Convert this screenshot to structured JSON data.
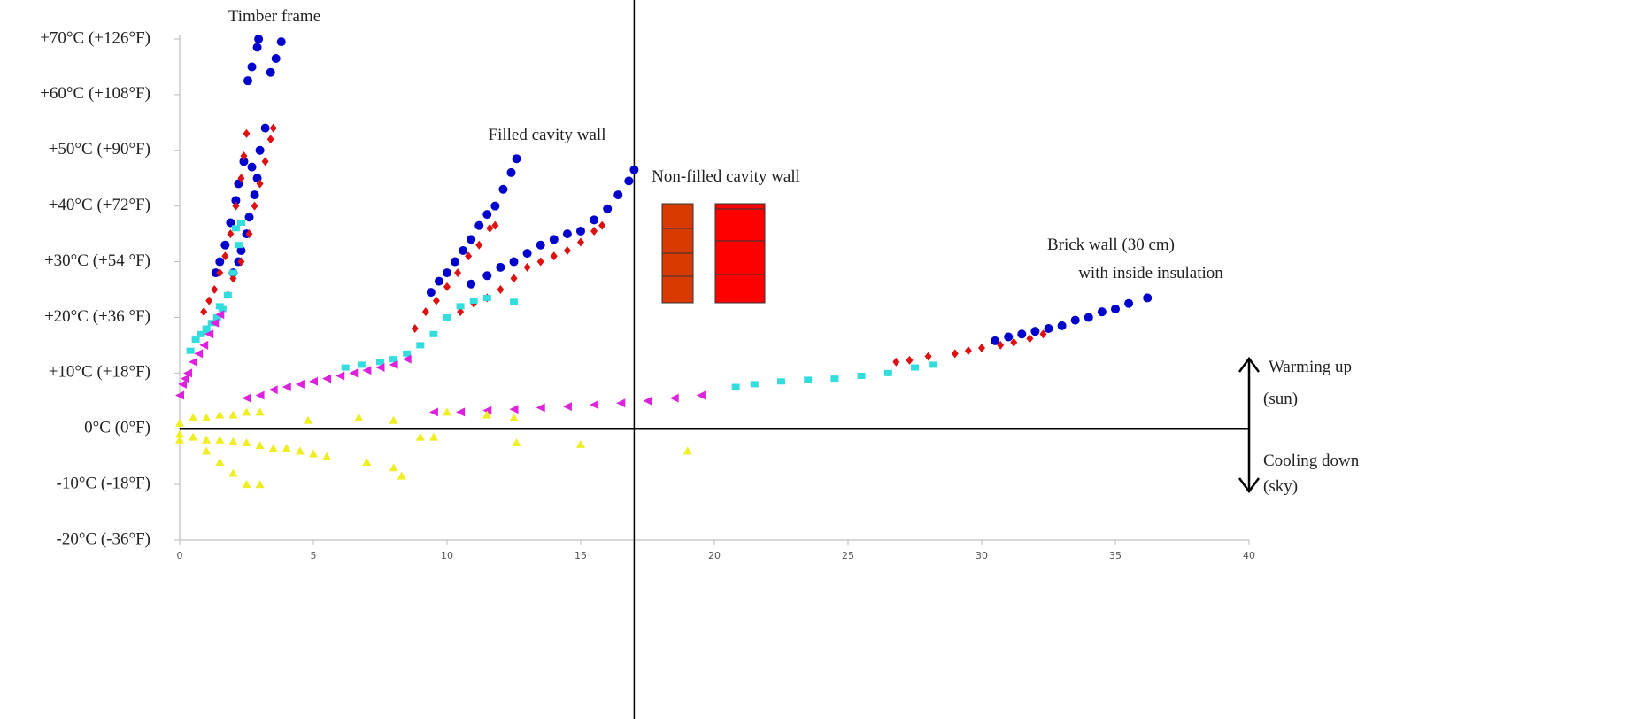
{
  "chart_data": {
    "type": "scatter",
    "xlim": [
      0,
      40
    ],
    "xticks": [
      0,
      5,
      10,
      15,
      20,
      25,
      30,
      35,
      40
    ],
    "ylim": [
      -20,
      70
    ],
    "yticks": [
      {
        "value": -20,
        "label": "-20°C (-36°F)"
      },
      {
        "value": -10,
        "label": "-10°C (-18°F)"
      },
      {
        "value": 0,
        "label": "0°C (0°F)"
      },
      {
        "value": 10,
        "label": "+10°C (+18°F)"
      },
      {
        "value": 20,
        "label": "+20°C (+36 °F)"
      },
      {
        "value": 30,
        "label": "+30°C (+54 °F)"
      },
      {
        "value": 40,
        "label": "+40°C (+72°F)"
      },
      {
        "value": 50,
        "label": "+50°C (+90°F)"
      },
      {
        "value": 60,
        "label": "+60°C (+108°F)"
      },
      {
        "value": 70,
        "label": "+70°C (+126°F)"
      }
    ],
    "reference_line_x": 17,
    "annotations": [
      "Timber frame",
      "Filled cavity wall",
      "Non-filled cavity wall",
      "Brick wall (30 cm)",
      "with inside insulation",
      "Warming up",
      "(sun)",
      "Cooling down",
      "(sky)"
    ],
    "series": [
      {
        "color": "#0000cc",
        "marker": "circle",
        "x": [
          2.55,
          2.7,
          2.9,
          2.95,
          3.4,
          3.6,
          3.8,
          3.2,
          3.0,
          2.7,
          2.4,
          2.2,
          2.1,
          1.9,
          1.7,
          1.5,
          1.35,
          2.9,
          2.8,
          2.6,
          2.5,
          2.3,
          2.2,
          2.0,
          9.4,
          9.7,
          10,
          10.3,
          10.6,
          10.9,
          11.2,
          11.5,
          11.8,
          12.1,
          12.4,
          12.6,
          10.9,
          11.5,
          12,
          12.5,
          13,
          13.5,
          14,
          14.5,
          15,
          15.5,
          16,
          16.4,
          16.8,
          17,
          30.5,
          31,
          31.5,
          32,
          32.5,
          33,
          33.5,
          34,
          34.5,
          35,
          35.5,
          36.2
        ],
        "values": [
          62.5,
          65,
          68.5,
          70,
          64,
          66.5,
          69.5,
          54,
          50,
          47,
          48,
          44,
          41,
          37,
          33,
          30,
          28,
          45,
          42,
          38,
          35,
          32,
          30,
          28,
          24.5,
          26.5,
          28,
          30,
          32,
          34,
          36.5,
          38.5,
          40,
          43,
          46,
          48.5,
          26,
          27.5,
          29,
          30,
          31.5,
          33,
          34,
          35,
          35.5,
          37.5,
          39.5,
          42,
          44.5,
          46.5,
          15.8,
          16.5,
          17,
          17.5,
          18,
          18.5,
          19.5,
          20,
          21,
          21.5,
          22.5,
          23.5
        ]
      },
      {
        "color": "#dd1111",
        "marker": "diamond",
        "x": [
          0.9,
          1.1,
          1.3,
          1.5,
          1.7,
          1.9,
          2.1,
          2.3,
          2.4,
          2.5,
          1.8,
          2.0,
          2.3,
          2.6,
          2.8,
          3.0,
          3.2,
          3.4,
          3.5,
          8.8,
          9.2,
          9.6,
          10,
          10.4,
          10.8,
          11.2,
          11.6,
          11.8,
          10.5,
          11,
          11.5,
          12,
          12.5,
          13,
          13.5,
          14,
          14.5,
          15,
          15.5,
          15.8,
          26.8,
          27.3,
          28,
          29,
          29.5,
          30,
          30.7,
          31.2,
          31.8,
          32.3
        ],
        "values": [
          21,
          23,
          25,
          28,
          31,
          35,
          40,
          45,
          49,
          53,
          24,
          27,
          30,
          35,
          40,
          44,
          48,
          52,
          54,
          18,
          21,
          23,
          25.5,
          28,
          31,
          33,
          36,
          36.5,
          21,
          22.5,
          23.5,
          25,
          27,
          29,
          30,
          31,
          32,
          33.5,
          35.5,
          36.5,
          12,
          12.3,
          13,
          13.5,
          14,
          14.5,
          15,
          15.5,
          16.2,
          17
        ]
      },
      {
        "color": "#33dddd",
        "marker": "square",
        "x": [
          0.4,
          0.6,
          0.8,
          1.0,
          1.2,
          1.4,
          1.6,
          1.8,
          2.0,
          2.2,
          2.3,
          2.1,
          1.5,
          1.0,
          6.2,
          6.8,
          7.5,
          8,
          8.5,
          9,
          9.5,
          10,
          10.5,
          11,
          11.5,
          12.5,
          20.8,
          21.5,
          22.5,
          23.5,
          24.5,
          25.5,
          26.5,
          27.5,
          28.2
        ],
        "values": [
          14,
          16,
          17,
          18,
          19,
          20,
          21.5,
          24,
          28,
          33,
          37,
          36,
          22,
          17.5,
          11,
          11.5,
          12,
          12.5,
          13.5,
          15,
          17,
          20,
          22,
          23,
          23.5,
          22.8,
          7.5,
          8,
          8.5,
          8.8,
          9,
          9.5,
          10,
          11,
          11.5
        ]
      },
      {
        "color": "#dd22dd",
        "marker": "triangle-left",
        "x": [
          0,
          0.1,
          0.2,
          0.3,
          0.5,
          0.7,
          0.9,
          1.1,
          1.3,
          1.5,
          2.5,
          3,
          3.5,
          4,
          4.5,
          5,
          5.5,
          6,
          6.5,
          7,
          7.5,
          8,
          8.5,
          9.5,
          10.5,
          11.5,
          12.5,
          13.5,
          14.5,
          15.5,
          16.5,
          17.5,
          18.5,
          19.5
        ],
        "values": [
          6,
          8,
          9,
          10,
          12,
          13.5,
          15,
          17,
          19,
          20.5,
          5.5,
          6,
          7,
          7.5,
          8,
          8.5,
          9,
          9.5,
          10,
          10.5,
          11,
          11.5,
          12.5,
          3,
          3,
          3.3,
          3.5,
          3.8,
          4,
          4.3,
          4.6,
          5,
          5.5,
          6
        ]
      },
      {
        "color": "#eeee22",
        "marker": "triangle-up",
        "x": [
          0,
          0,
          0,
          0.5,
          1,
          1.5,
          2,
          2.5,
          3,
          0.5,
          1,
          1.5,
          2,
          2.5,
          3,
          3.5,
          4,
          4.5,
          5,
          5.5,
          1.0,
          1.5,
          2,
          2.5,
          3,
          4.8,
          6.7,
          8,
          10,
          11.5,
          12.5,
          7,
          8,
          8.3,
          9,
          9.5,
          12.6,
          15,
          19
        ],
        "values": [
          1,
          -1,
          -2,
          2,
          2,
          2.5,
          2.5,
          3,
          3,
          -1.5,
          -2,
          -2,
          -2.3,
          -2.5,
          -3,
          -3.5,
          -3.5,
          -4,
          -4.5,
          -5,
          -4,
          -6,
          -8,
          -10,
          -10,
          1.5,
          2,
          1.5,
          3,
          2.5,
          2,
          -6,
          -7,
          -8.5,
          -1.5,
          -1.5,
          -2.5,
          -2.8,
          -4
        ]
      }
    ]
  }
}
